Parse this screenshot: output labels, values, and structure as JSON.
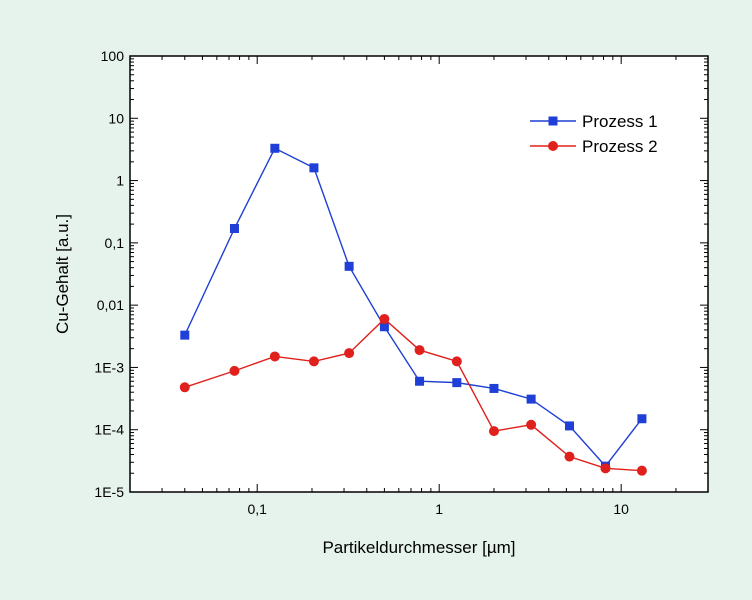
{
  "chart_data": {
    "type": "line",
    "xlabel": "Partikeldurchmesser [µm]",
    "ylabel": "Cu-Gehalt [a.u.]",
    "x_scale": "log",
    "y_scale": "log",
    "xlim": [
      0.02,
      30
    ],
    "ylim": [
      1e-05,
      100
    ],
    "x_ticks": [
      {
        "value": 0.1,
        "label": "0,1"
      },
      {
        "value": 1,
        "label": "1"
      },
      {
        "value": 10,
        "label": "10"
      }
    ],
    "y_ticks": [
      {
        "value": 100,
        "label": "100"
      },
      {
        "value": 10,
        "label": "10"
      },
      {
        "value": 1,
        "label": "1"
      },
      {
        "value": 0.1,
        "label": "0,1"
      },
      {
        "value": 0.01,
        "label": "0,01"
      },
      {
        "value": 0.001,
        "label": "1E-3"
      },
      {
        "value": 0.0001,
        "label": "1E-4"
      },
      {
        "value": 1e-05,
        "label": "1E-5"
      }
    ],
    "grid": false,
    "legend_position": "top-right",
    "series": [
      {
        "name": "Prozess 1",
        "color": "#1f3fd6",
        "marker": "square",
        "x": [
          0.04,
          0.075,
          0.125,
          0.205,
          0.32,
          0.5,
          0.78,
          1.25,
          2.0,
          3.2,
          5.2,
          8.2,
          13.0
        ],
        "y": [
          0.0033,
          0.17,
          3.3,
          1.6,
          0.042,
          0.0045,
          0.0006,
          0.00057,
          0.00046,
          0.00031,
          0.000115,
          2.6e-05,
          0.00015
        ]
      },
      {
        "name": "Prozess 2",
        "color": "#e0201c",
        "marker": "circle",
        "x": [
          0.04,
          0.075,
          0.125,
          0.205,
          0.32,
          0.5,
          0.78,
          1.25,
          2.0,
          3.2,
          5.2,
          8.2,
          13.0
        ],
        "y": [
          0.00048,
          0.00088,
          0.0015,
          0.00125,
          0.0017,
          0.006,
          0.0019,
          0.00125,
          9.5e-05,
          0.00012,
          3.7e-05,
          2.4e-05,
          2.2e-05
        ]
      }
    ]
  }
}
